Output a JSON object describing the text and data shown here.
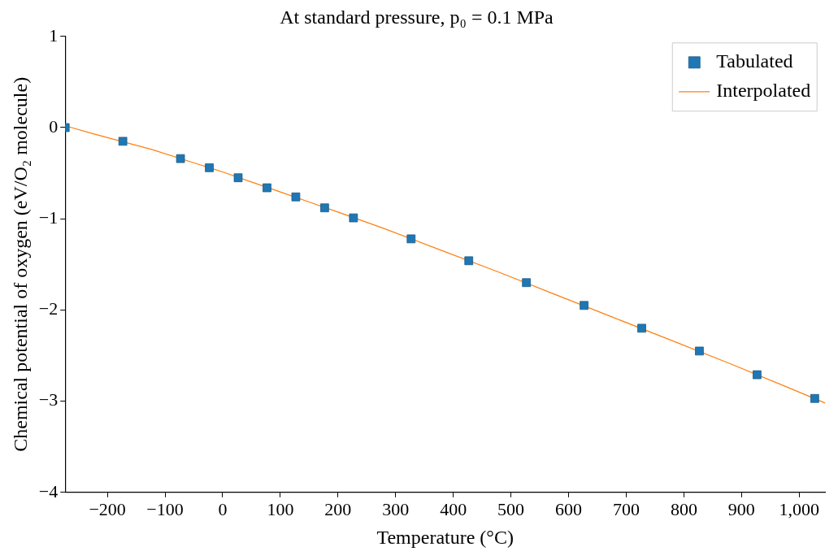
{
  "chart_data": {
    "type": "scatter",
    "title": "At standard pressure, p₀ = 0.1 MPa",
    "xlabel": "Temperature (°C)",
    "ylabel": "Chemical potential of oxygen (eV/O₂ molecule)",
    "series": [
      {
        "name": "Tabulated",
        "color": "#1f77b4",
        "marker": "square",
        "x": [
          -273.15,
          -173.15,
          -73.15,
          -23.15,
          26.85,
          76.85,
          126.85,
          176.85,
          226.85,
          326.85,
          426.85,
          526.85,
          626.85,
          726.85,
          826.85,
          926.85,
          1026.85
        ],
        "values": [
          0,
          -0.15,
          -0.34,
          -0.44,
          -0.55,
          -0.66,
          -0.76,
          -0.88,
          -0.99,
          -1.22,
          -1.46,
          -1.7,
          -1.95,
          -2.2,
          -2.45,
          -2.71,
          -2.97
        ]
      },
      {
        "name": "Interpolated",
        "type": "line",
        "color": "#ff7f0e",
        "marker": "none",
        "x": [
          -273.15,
          -223.15,
          -123.15,
          -48.15,
          1.85,
          51.85,
          101.85,
          151.85,
          201.85,
          276.85,
          376.85,
          476.85,
          576.85,
          676.85,
          776.85,
          876.85,
          976.85,
          1045
        ],
        "values": [
          0.02,
          -0.07,
          -0.24,
          -0.39,
          -0.49,
          -0.6,
          -0.71,
          -0.82,
          -0.93,
          -1.1,
          -1.34,
          -1.58,
          -1.83,
          -2.08,
          -2.33,
          -2.58,
          -2.84,
          -3.02
        ]
      }
    ],
    "xlim": [
      -273.15,
      1045
    ],
    "xticks": [
      {
        "value": -200,
        "label": "−200"
      },
      {
        "value": -100,
        "label": "−100"
      },
      0,
      100,
      200,
      300,
      400,
      500,
      600,
      700,
      800,
      900,
      {
        "value": 1000,
        "label": "1,000"
      }
    ],
    "ylim": [
      -4,
      1
    ],
    "yticks": [
      1,
      0,
      {
        "value": -1,
        "label": "−1"
      },
      {
        "value": -2,
        "label": "−2"
      },
      {
        "value": -3,
        "label": "−3"
      },
      {
        "value": -4,
        "label": "−4"
      }
    ],
    "grid": false,
    "legend": "top right"
  }
}
